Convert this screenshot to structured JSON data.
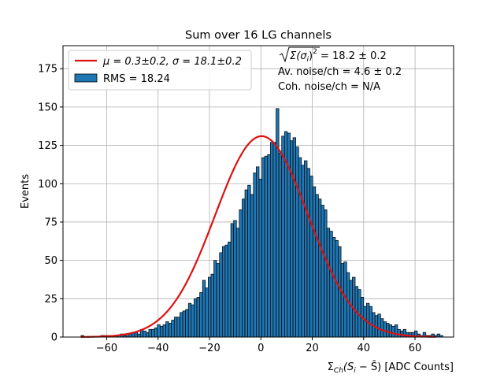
{
  "chart_data": {
    "type": "bar",
    "title": "Sum over 16 LG channels",
    "ylabel": "Events",
    "xlabel_prefix": "Σ",
    "xlabel_sub": "Ch",
    "xlabel_body": "(S",
    "xlabel_sub2": "i",
    "xlabel_rest": " − S̄) [ADC Counts]",
    "xlim": [
      -77,
      75
    ],
    "ylim": [
      0,
      190
    ],
    "xticks": [
      -60,
      -40,
      -20,
      0,
      20,
      40,
      60
    ],
    "yticks": [
      0,
      25,
      50,
      75,
      100,
      125,
      150,
      175
    ],
    "xtick_labels": [
      "−60",
      "−40",
      "−20",
      "0",
      "20",
      "40",
      "60"
    ],
    "ytick_labels": [
      "0",
      "25",
      "50",
      "75",
      "100",
      "125",
      "150",
      "175"
    ],
    "grid": true,
    "bin_start": -70,
    "bin_width": 1.1,
    "counts": [
      1,
      0,
      0,
      0,
      0,
      0,
      0,
      1,
      1,
      1,
      1,
      1,
      1,
      1,
      2,
      1,
      1,
      2,
      3,
      3,
      2,
      5,
      4,
      3,
      5,
      5,
      6,
      8,
      7,
      8,
      10,
      9,
      11,
      13,
      13,
      16,
      17,
      18,
      22,
      21,
      25,
      26,
      29,
      37,
      32,
      39,
      41,
      50,
      48,
      55,
      59,
      60,
      62,
      74,
      76,
      71,
      83,
      90,
      96,
      99,
      93,
      107,
      111,
      103,
      117,
      118,
      119,
      127,
      127,
      149,
      120,
      131,
      134,
      133,
      128,
      130,
      124,
      117,
      112,
      115,
      110,
      105,
      98,
      93,
      90,
      86,
      83,
      71,
      69,
      65,
      63,
      59,
      48,
      49,
      42,
      37,
      39,
      33,
      31,
      26,
      20,
      22,
      20,
      16,
      14,
      15,
      12,
      10,
      9,
      8,
      7,
      8,
      5,
      4,
      5,
      3,
      3,
      3,
      4,
      2,
      1,
      3,
      1,
      1,
      2,
      1,
      2,
      1,
      0
    ],
    "fit": {
      "mu": 0.3,
      "sigma": 18.1,
      "amplitude": 131,
      "x_range": [
        -70,
        68
      ],
      "color": "#dd1111"
    },
    "bar_color": "#1f77b4",
    "legend": {
      "placement": "top-left",
      "fit_label": "μ = 0.3±0.2, σ = 18.1±0.2",
      "rms_label": "RMS = 18.24"
    },
    "annotations": {
      "line1_value": " = 18.2 ± 0.2",
      "line1_sqrt_body": "Σ(σ",
      "line1_sub": "i",
      "line1_close": ")",
      "line1_sup": "2",
      "line2": "Av. noise/ch  = 4.6 ± 0.2",
      "line3": "Coh. noise/ch = N/A"
    }
  }
}
